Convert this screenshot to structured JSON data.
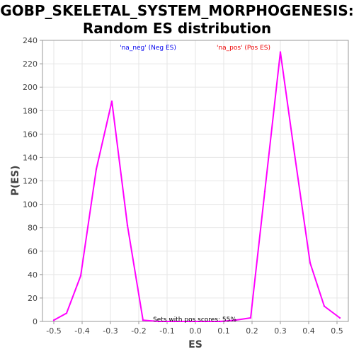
{
  "chart_data": {
    "type": "line",
    "title_lines": [
      "GOBP_SKELETAL_SYSTEM_MORPHOGENESIS:",
      "Random ES distribution"
    ],
    "xlabel": "ES",
    "ylabel": "P(ES)",
    "xlim": [
      -0.54,
      0.54
    ],
    "ylim": [
      0,
      240
    ],
    "xticks": [
      "-0.5",
      "-0.4",
      "-0.3",
      "-0.2",
      "-0.1",
      "0.0",
      "0.1",
      "0.2",
      "0.3",
      "0.4",
      "0.5"
    ],
    "xtick_values": [
      -0.5,
      -0.4,
      -0.3,
      -0.2,
      -0.1,
      0.0,
      0.1,
      0.2,
      0.3,
      0.4,
      0.5
    ],
    "yticks": [
      "0",
      "20",
      "40",
      "60",
      "80",
      "100",
      "120",
      "140",
      "160",
      "180",
      "200",
      "220",
      "240"
    ],
    "ytick_values": [
      0,
      20,
      40,
      60,
      80,
      100,
      120,
      140,
      160,
      180,
      200,
      220,
      240
    ],
    "grid": true,
    "series": [
      {
        "color": "#ff00ff",
        "x": [
          -0.5,
          -0.455,
          -0.405,
          -0.35,
          -0.295,
          -0.24,
          -0.185,
          -0.13,
          -0.075,
          -0.02,
          0.035,
          0.09,
          0.14,
          0.195,
          0.245,
          0.3,
          0.35,
          0.405,
          0.455,
          0.51
        ],
        "y": [
          1,
          7,
          39,
          130,
          188,
          82,
          1,
          0,
          0,
          0,
          0,
          0,
          1,
          3,
          111,
          230,
          143,
          50,
          13,
          3
        ]
      }
    ],
    "annotations": [
      {
        "text": "'na_neg' (Neg ES)",
        "color": "#0000ee"
      },
      {
        "text": "'na_pos' (Pos ES)",
        "color": "#ee0000"
      },
      {
        "text": "Sets with pos scores: 55%",
        "color": "#000000"
      }
    ]
  }
}
